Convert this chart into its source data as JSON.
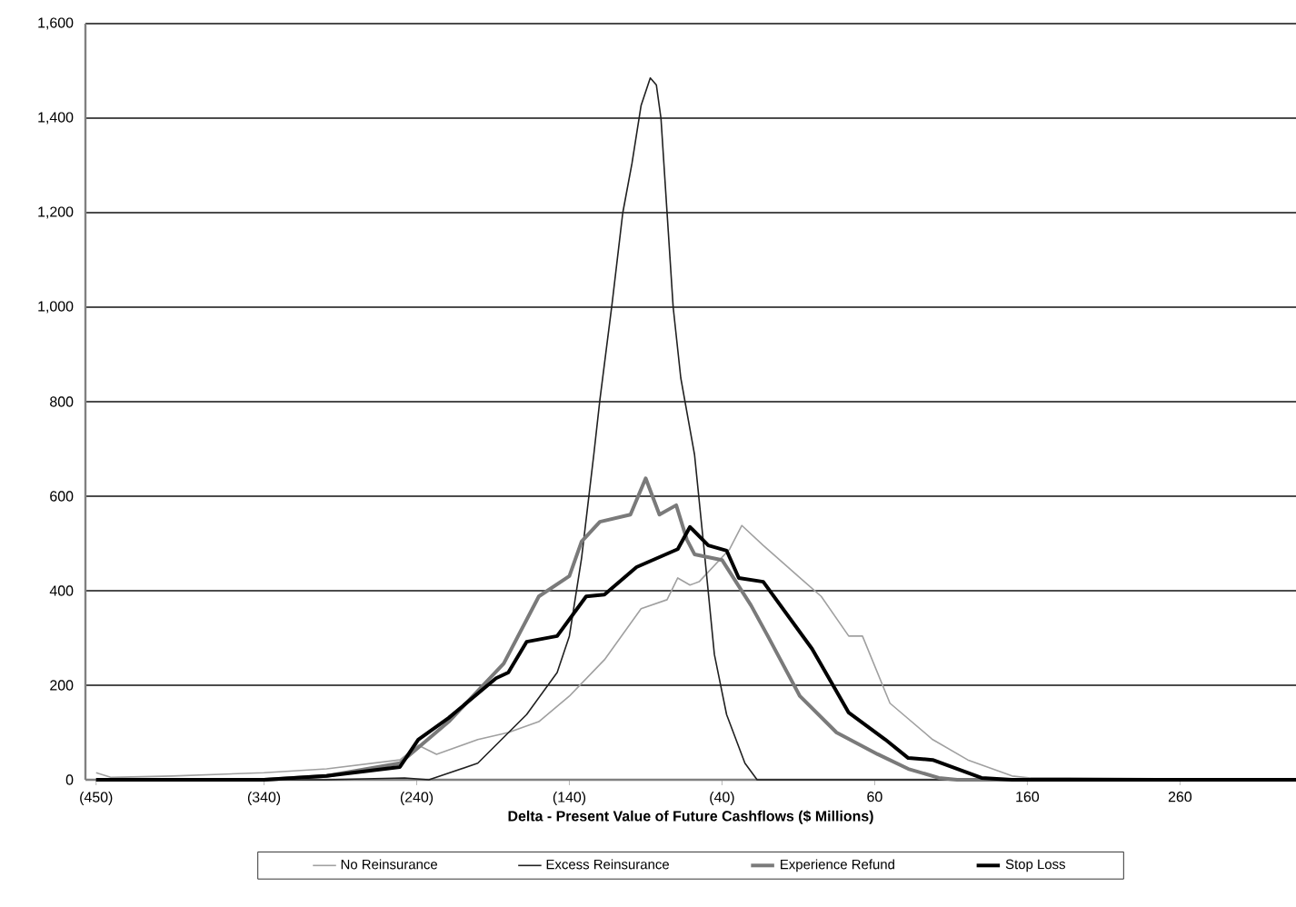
{
  "chart_data": {
    "type": "line",
    "xlabel": "Delta - Present Value of Future Cashflows ($ Millions)",
    "xlim": [
      -457,
      336
    ],
    "ylim": [
      0,
      1600
    ],
    "xticks": [
      {
        "value": -450,
        "label": "(450)"
      },
      {
        "value": -340,
        "label": "(340)"
      },
      {
        "value": -240,
        "label": "(240)"
      },
      {
        "value": -140,
        "label": "(140)"
      },
      {
        "value": -40,
        "label": "(40)"
      },
      60,
      160,
      260
    ],
    "yticks": [
      0,
      200,
      400,
      600,
      800,
      {
        "value": 1000,
        "label": "1,000"
      },
      {
        "value": 1200,
        "label": "1,200"
      },
      {
        "value": 1400,
        "label": "1,400"
      },
      {
        "value": 1600,
        "label": "1,600"
      }
    ],
    "grid": "y",
    "legend": "bottom",
    "marker": "none",
    "line_style": "solid",
    "series": [
      {
        "name": "No Reinsurance",
        "color": "#a0a0a0",
        "x": [
          -450,
          -440,
          -400,
          -340,
          -299,
          -251,
          -239,
          -227,
          -200,
          -180,
          -160,
          -140,
          -117,
          -93,
          -76,
          -69,
          -61,
          -55,
          -35,
          -27,
          -13,
          14,
          25,
          43,
          52,
          70,
          98,
          121,
          150,
          162,
          186,
          336
        ],
        "values": [
          15,
          5,
          8,
          15,
          23,
          42,
          73,
          54,
          85,
          100,
          123,
          177,
          254,
          362,
          381,
          427,
          412,
          419,
          488,
          538,
          496,
          419,
          388,
          304,
          304,
          162,
          85,
          42,
          8,
          4,
          4,
          0
        ]
      },
      {
        "name": "Excess Reinsurance",
        "color": "#202020",
        "x": [
          -450,
          -300,
          -248,
          -232,
          -200,
          -168,
          -148,
          -140,
          -132,
          -124,
          -120,
          -112,
          -105,
          -99,
          -93,
          -87,
          -83,
          -80,
          -76,
          -72,
          -67,
          -62,
          -58,
          -52,
          -45,
          -37,
          -25,
          -17,
          336
        ],
        "values": [
          0,
          0,
          4,
          0,
          35,
          138,
          227,
          304,
          469,
          688,
          804,
          1008,
          1200,
          1304,
          1427,
          1485,
          1470,
          1400,
          1200,
          1000,
          850,
          760,
          688,
          496,
          265,
          138,
          35,
          0,
          0
        ]
      },
      {
        "name": "Experience Refund",
        "color": "#7a7a7a",
        "x": [
          -450,
          -340,
          -299,
          -251,
          -219,
          -183,
          -160,
          -140,
          -132,
          -120,
          -100,
          -90,
          -81,
          -70,
          -63,
          -58,
          -40,
          -21,
          -10,
          11,
          35,
          62,
          82,
          102,
          114,
          336
        ],
        "values": [
          0,
          0,
          8,
          35,
          123,
          246,
          388,
          431,
          504,
          546,
          561,
          638,
          561,
          581,
          508,
          477,
          465,
          369,
          304,
          177,
          100,
          54,
          23,
          4,
          0,
          0
        ]
      },
      {
        "name": "Stop Loss",
        "color": "#000000",
        "x": [
          -450,
          -340,
          -299,
          -251,
          -239,
          -219,
          -188,
          -180,
          -168,
          -148,
          -129,
          -117,
          -96,
          -69,
          -61,
          -49,
          -37,
          -29,
          -13,
          19,
          43,
          67,
          82,
          98,
          130,
          150,
          336
        ],
        "values": [
          0,
          0,
          8,
          27,
          85,
          131,
          215,
          227,
          292,
          304,
          388,
          392,
          450,
          488,
          535,
          496,
          485,
          427,
          419,
          277,
          142,
          85,
          46,
          42,
          4,
          0,
          0
        ]
      }
    ]
  }
}
